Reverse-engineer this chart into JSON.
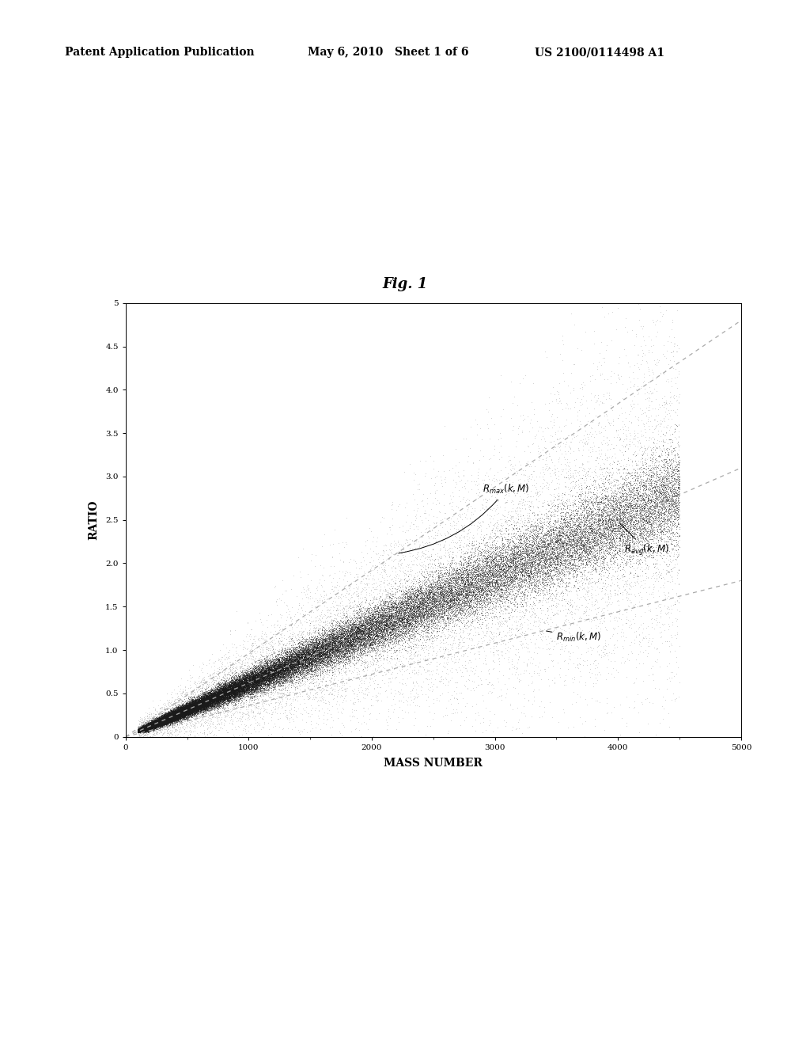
{
  "fig_label": "Fig. 1",
  "header_left": "Patent Application Publication",
  "header_mid": "May 6, 2010   Sheet 1 of 6",
  "header_right": "US 2100/0114498 A1",
  "xlabel": "MASS NUMBER",
  "ylabel": "RATIO",
  "xlim": [
    0,
    5000
  ],
  "ylim": [
    0,
    5
  ],
  "xticks": [
    0,
    1000,
    2000,
    3000,
    4000,
    5000
  ],
  "xtick_labels": [
    "0",
    "1000",
    "2000",
    "3000",
    "4000",
    "5000"
  ],
  "yticks": [
    0,
    0.5,
    1.0,
    1.5,
    2.0,
    2.5,
    3.0,
    3.5,
    4.0,
    4.5,
    5.0
  ],
  "ytick_labels": [
    "0",
    "0.5",
    "1.0",
    "1.5",
    "2.0",
    "2.5",
    "3.0",
    "3.5",
    "4.0",
    "4.5",
    "5"
  ],
  "bg_color": "#ffffff",
  "plot_bg_color": "#ffffff",
  "seed": 42,
  "slope_ravg": 0.00062,
  "slope_rmax": 0.00096,
  "slope_rmin": 0.00036,
  "mass_min": 100,
  "mass_max": 4500,
  "n_dense": 30000,
  "n_sparse": 15000
}
